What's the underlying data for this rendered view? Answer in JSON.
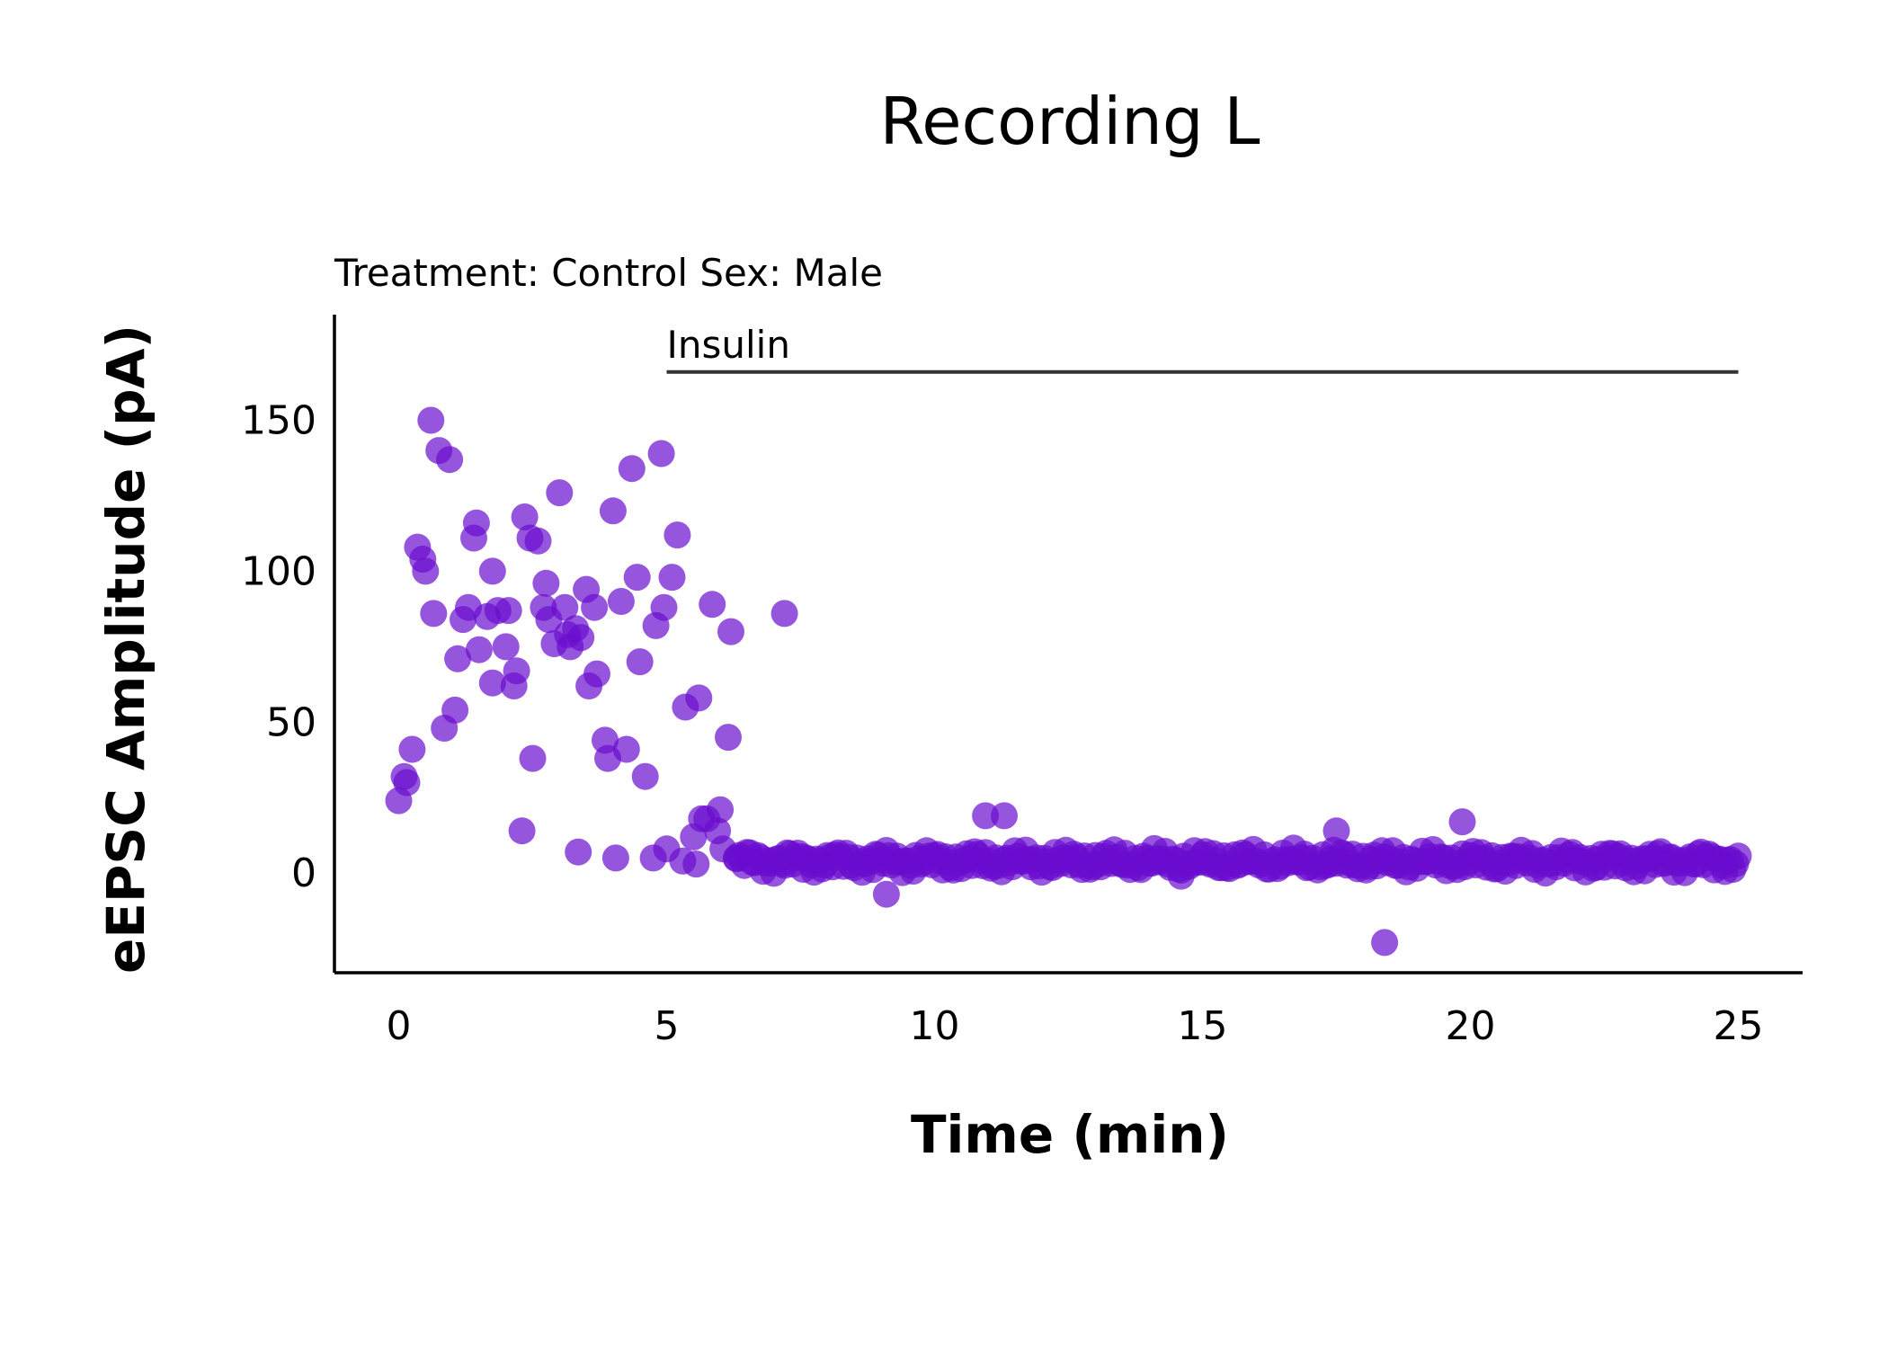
{
  "chart_data": {
    "type": "scatter",
    "title": "Recording L",
    "subtitle": "Treatment: Control  Sex: Male",
    "xlabel": "Time (min)",
    "ylabel": "eEPSC Amplitude (pA)",
    "xlim": [
      -1.2,
      26.2
    ],
    "ylim": [
      -33,
      185
    ],
    "xticks": [
      0,
      5,
      10,
      15,
      20,
      25
    ],
    "yticks": [
      0,
      50,
      100,
      150
    ],
    "grid": false,
    "legend": "none",
    "point_color": "#6a0dcf",
    "point_opacity": 0.7,
    "annotation": {
      "label": "Insulin",
      "x_start": 5,
      "x_end": 25,
      "y": 166
    },
    "points": {
      "early": [
        [
          0.0,
          24
        ],
        [
          0.1,
          32
        ],
        [
          0.15,
          30
        ],
        [
          0.25,
          41
        ],
        [
          0.35,
          108
        ],
        [
          0.45,
          104
        ],
        [
          0.5,
          100
        ],
        [
          0.6,
          150
        ],
        [
          0.65,
          86
        ],
        [
          0.75,
          140
        ],
        [
          0.95,
          137
        ],
        [
          1.05,
          54
        ],
        [
          0.85,
          48
        ],
        [
          1.1,
          71
        ],
        [
          1.2,
          84
        ],
        [
          1.3,
          88
        ],
        [
          1.4,
          111
        ],
        [
          1.45,
          116
        ],
        [
          1.5,
          74
        ],
        [
          1.65,
          85
        ],
        [
          1.75,
          100
        ],
        [
          1.75,
          63
        ],
        [
          1.85,
          87
        ],
        [
          2.0,
          75
        ],
        [
          2.05,
          87
        ],
        [
          2.15,
          62
        ],
        [
          2.2,
          67
        ],
        [
          2.3,
          14
        ],
        [
          2.35,
          118
        ],
        [
          2.45,
          111
        ],
        [
          2.5,
          38
        ],
        [
          2.6,
          110
        ],
        [
          2.7,
          88
        ],
        [
          2.75,
          96
        ],
        [
          2.8,
          84
        ],
        [
          2.9,
          76
        ],
        [
          3.0,
          126
        ],
        [
          3.1,
          88
        ],
        [
          3.15,
          79
        ],
        [
          3.2,
          75
        ],
        [
          3.3,
          81
        ],
        [
          3.35,
          7
        ],
        [
          3.4,
          78
        ],
        [
          3.5,
          94
        ],
        [
          3.55,
          62
        ],
        [
          3.65,
          88
        ],
        [
          3.7,
          66
        ],
        [
          3.85,
          44
        ],
        [
          3.9,
          38
        ],
        [
          4.0,
          120
        ],
        [
          4.05,
          5
        ],
        [
          4.15,
          90
        ],
        [
          4.25,
          41
        ],
        [
          4.35,
          134
        ],
        [
          4.45,
          98
        ],
        [
          4.5,
          70
        ],
        [
          4.6,
          32
        ],
        [
          4.75,
          5
        ],
        [
          4.8,
          82
        ],
        [
          4.9,
          139
        ],
        [
          4.95,
          88
        ],
        [
          5.1,
          98
        ],
        [
          5.2,
          112
        ],
        [
          5.0,
          8
        ],
        [
          5.3,
          4
        ],
        [
          5.35,
          55
        ],
        [
          5.5,
          12
        ],
        [
          5.6,
          58
        ],
        [
          5.55,
          3
        ],
        [
          5.65,
          18
        ],
        [
          5.75,
          18
        ],
        [
          5.85,
          89
        ],
        [
          5.95,
          14
        ],
        [
          6.0,
          21
        ],
        [
          6.05,
          8
        ],
        [
          6.15,
          45
        ],
        [
          6.2,
          80
        ],
        [
          6.3,
          5
        ],
        [
          7.2,
          86
        ]
      ],
      "outliers": [
        [
          9.1,
          -7
        ],
        [
          10.95,
          19
        ],
        [
          11.3,
          19
        ],
        [
          14.6,
          -1
        ],
        [
          17.5,
          14
        ],
        [
          18.4,
          -23
        ],
        [
          19.85,
          17
        ]
      ],
      "baseline": {
        "x_start": 6.3,
        "x_end": 25.0,
        "step": 0.05,
        "mean": 4,
        "amplitude": 2.2
      }
    }
  }
}
